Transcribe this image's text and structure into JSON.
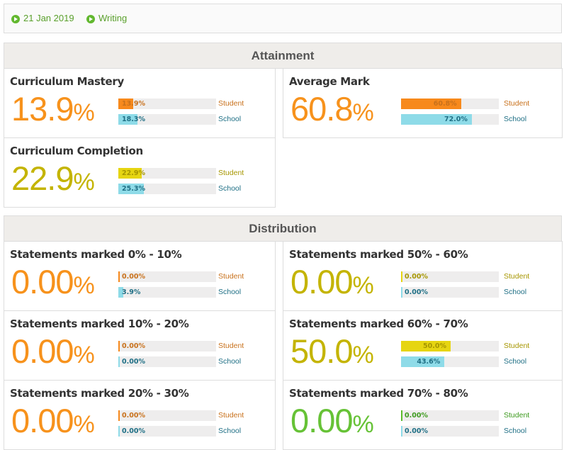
{
  "header": {
    "date": "21 Jan 2019",
    "subject": "Writing"
  },
  "sections": [
    {
      "title": "Attainment",
      "cards": [
        {
          "title": "Curriculum Mastery",
          "value_text": "13.9",
          "unit": "%",
          "color": "#f7921c",
          "bar_color": "#f7891c",
          "label_color": "#c8711c",
          "student": {
            "name": "Student",
            "value": 13.9,
            "label": "13.9%"
          },
          "school": {
            "name": "School",
            "value": 18.3,
            "label": "18.3%"
          }
        },
        {
          "title": "Average Mark",
          "value_text": "60.8",
          "unit": "%",
          "color": "#f7921c",
          "bar_color": "#f7891c",
          "label_color": "#c8711c",
          "student": {
            "name": "Student",
            "value": 60.8,
            "label": "60.8%"
          },
          "school": {
            "name": "School",
            "value": 72.0,
            "label": "72.0%"
          }
        },
        {
          "title": "Curriculum Completion",
          "value_text": "22.9",
          "unit": "%",
          "color": "#c4b400",
          "bar_color": "#e6d511",
          "label_color": "#a69600",
          "student": {
            "name": "Student",
            "value": 22.9,
            "label": "22.9%"
          },
          "school": {
            "name": "School",
            "value": 25.3,
            "label": "25.3%"
          }
        }
      ]
    },
    {
      "title": "Distribution",
      "cards": [
        {
          "title": "Statements marked 0% - 10%",
          "value_text": "0.00",
          "unit": "%",
          "color": "#f7921c",
          "bar_color": "#f7891c",
          "label_color": "#c8711c",
          "student": {
            "name": "Student",
            "value": 0.0,
            "label": "0.00%"
          },
          "school": {
            "name": "School",
            "value": 3.9,
            "label": "3.9%"
          }
        },
        {
          "title": "Statements marked 50% - 60%",
          "value_text": "0.00",
          "unit": "%",
          "color": "#c4b400",
          "bar_color": "#e6d511",
          "label_color": "#a69600",
          "student": {
            "name": "Student",
            "value": 0.0,
            "label": "0.00%"
          },
          "school": {
            "name": "School",
            "value": 0.0,
            "label": "0.00%"
          }
        },
        {
          "title": "Statements marked 10% - 20%",
          "value_text": "0.00",
          "unit": "%",
          "color": "#f7921c",
          "bar_color": "#f7891c",
          "label_color": "#c8711c",
          "student": {
            "name": "Student",
            "value": 0.0,
            "label": "0.00%"
          },
          "school": {
            "name": "School",
            "value": 0.0,
            "label": "0.00%"
          }
        },
        {
          "title": "Statements marked 60% - 70%",
          "value_text": "50.0",
          "unit": "%",
          "color": "#c4b400",
          "bar_color": "#e6d511",
          "label_color": "#a69600",
          "student": {
            "name": "Student",
            "value": 50.0,
            "label": "50.0%"
          },
          "school": {
            "name": "School",
            "value": 43.6,
            "label": "43.6%"
          }
        },
        {
          "title": "Statements marked 20% - 30%",
          "value_text": "0.00",
          "unit": "%",
          "color": "#f7921c",
          "bar_color": "#f7891c",
          "label_color": "#c8711c",
          "student": {
            "name": "Student",
            "value": 0.0,
            "label": "0.00%"
          },
          "school": {
            "name": "School",
            "value": 0.0,
            "label": "0.00%"
          }
        },
        {
          "title": "Statements marked 70% - 80%",
          "value_text": "0.00",
          "unit": "%",
          "color": "#66c236",
          "bar_color": "#5cbd2c",
          "label_color": "#3d9a1e",
          "student": {
            "name": "Student",
            "value": 0.0,
            "label": "0.00%"
          },
          "school": {
            "name": "School",
            "value": 0.0,
            "label": "0.00%"
          }
        }
      ]
    }
  ]
}
